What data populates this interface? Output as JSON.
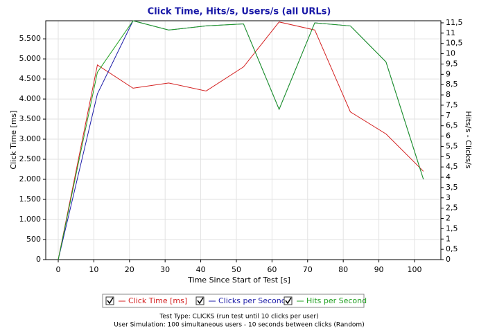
{
  "chart_data": {
    "type": "line",
    "title": "Click Time, Hits/s, Users/s (all URLs)",
    "x_label": "Time Since Start of Test [s]",
    "y_label": "Click Time [ms]",
    "y2_label": "Hits/s - Clicks/s",
    "x": [
      0,
      11,
      21,
      31,
      41.5,
      52,
      62,
      72,
      82,
      92,
      102.5
    ],
    "series": [
      {
        "name": "Click Time [ms]",
        "color": "#d42020",
        "values": [
          0,
          4850,
          4270,
          4400,
          4200,
          4800,
          5920,
          5720,
          3680,
          3130,
          2200
        ]
      },
      {
        "name": "Clicks per Second",
        "color": "#1c1ca8",
        "axis": "y2",
        "values": [
          0,
          8.05,
          11.6,
          11.15,
          11.35,
          11.45,
          7.3,
          11.5,
          11.35,
          9.6,
          3.9
        ]
      },
      {
        "name": "Hits per Second",
        "color": "#20a020",
        "axis": "y2",
        "values": [
          0,
          9.1,
          11.6,
          11.15,
          11.35,
          11.45,
          7.3,
          11.5,
          11.35,
          9.6,
          3.9
        ]
      }
    ],
    "xlim": [
      -3.5,
      107.4
    ],
    "xticks": [
      0,
      10,
      20,
      30,
      40,
      50,
      60,
      70,
      80,
      90,
      100
    ],
    "ylim": [
      0,
      5950
    ],
    "yticks": [
      0,
      500,
      {
        "value": 1000,
        "label": "1.000"
      },
      {
        "value": 1500,
        "label": "1.500"
      },
      {
        "value": 2000,
        "label": "2.000"
      },
      {
        "value": 2500,
        "label": "2.500"
      },
      {
        "value": 3000,
        "label": "3.000"
      },
      {
        "value": 3500,
        "label": "3.500"
      },
      {
        "value": 4000,
        "label": "4.000"
      },
      {
        "value": 4500,
        "label": "4.500"
      },
      {
        "value": 5000,
        "label": "5.000"
      },
      {
        "value": 5500,
        "label": "5.500"
      }
    ],
    "y2lim": [
      0,
      11.6
    ],
    "y2ticks": [
      0,
      {
        "value": 0.5,
        "label": "0,5"
      },
      1,
      {
        "value": 1.5,
        "label": "1,5"
      },
      2,
      {
        "value": 2.5,
        "label": "2,5"
      },
      3,
      {
        "value": 3.5,
        "label": "3,5"
      },
      4,
      {
        "value": 4.5,
        "label": "4,5"
      },
      5,
      {
        "value": 5.5,
        "label": "5,5"
      },
      6,
      {
        "value": 6.5,
        "label": "6,5"
      },
      7,
      {
        "value": 7.5,
        "label": "7,5"
      },
      8,
      {
        "value": 8.5,
        "label": "8,5"
      },
      9,
      {
        "value": 9.5,
        "label": "9,5"
      },
      10,
      {
        "value": 10.5,
        "label": "10,5"
      },
      11,
      {
        "value": 11.5,
        "label": "11,5"
      }
    ],
    "grid": true,
    "legend": "bottom",
    "footer": [
      "Test Type: CLICKS (run test until 10 clicks per user)",
      "User Simulation: 100 simultaneous users - 10 seconds between clicks (Random)"
    ]
  }
}
